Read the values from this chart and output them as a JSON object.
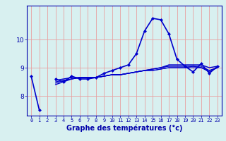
{
  "xlabel": "Graphe des températures (°c)",
  "x": [
    0,
    1,
    2,
    3,
    4,
    5,
    6,
    7,
    8,
    9,
    10,
    11,
    12,
    13,
    14,
    15,
    16,
    17,
    18,
    19,
    20,
    21,
    22,
    23
  ],
  "lines": [
    {
      "y": [
        8.7,
        7.5,
        null,
        8.6,
        8.5,
        8.7,
        8.6,
        8.6,
        8.65,
        8.8,
        8.9,
        9.0,
        9.1,
        9.5,
        10.3,
        10.75,
        10.7,
        10.2,
        9.3,
        9.05,
        8.85,
        9.15,
        8.8,
        9.05
      ],
      "color": "#0000cc",
      "lw": 1.2,
      "marker": "D",
      "markersize": 2.0
    },
    {
      "y": [
        8.7,
        null,
        null,
        8.55,
        8.6,
        8.65,
        8.65,
        8.65,
        8.65,
        8.7,
        8.75,
        8.75,
        8.8,
        8.85,
        8.9,
        8.95,
        9.0,
        9.1,
        9.1,
        9.1,
        9.1,
        9.1,
        9.0,
        9.05
      ],
      "color": "#0000cc",
      "lw": 1.0,
      "marker": null,
      "markersize": 0
    },
    {
      "y": [
        8.7,
        null,
        null,
        8.4,
        8.5,
        8.6,
        8.65,
        8.65,
        8.65,
        8.7,
        8.75,
        8.75,
        8.8,
        8.85,
        8.9,
        8.95,
        9.0,
        9.05,
        9.05,
        9.05,
        9.05,
        9.0,
        8.9,
        9.0
      ],
      "color": "#0000cc",
      "lw": 1.0,
      "marker": null,
      "markersize": 0
    },
    {
      "y": [
        8.7,
        null,
        null,
        8.45,
        8.55,
        8.6,
        8.65,
        8.65,
        8.65,
        8.7,
        8.75,
        8.75,
        8.8,
        8.85,
        8.9,
        8.9,
        8.95,
        9.0,
        9.0,
        9.0,
        9.0,
        9.0,
        8.85,
        9.0
      ],
      "color": "#0000cc",
      "lw": 0.8,
      "marker": null,
      "markersize": 0
    },
    {
      "y": [
        8.7,
        null,
        null,
        8.5,
        8.55,
        8.6,
        8.65,
        8.65,
        8.65,
        8.7,
        8.75,
        8.75,
        8.8,
        8.85,
        8.9,
        8.9,
        8.95,
        9.0,
        9.0,
        9.0,
        9.05,
        9.05,
        8.9,
        9.0
      ],
      "color": "#0000cc",
      "lw": 0.8,
      "marker": null,
      "markersize": 0
    }
  ],
  "bg_color": "#d8f0f0",
  "grid_color": "#e8a0a0",
  "axis_color": "#0000aa",
  "tick_color": "#0000aa",
  "label_color": "#0000aa",
  "yticks": [
    8,
    9,
    10
  ],
  "ylim": [
    7.3,
    11.2
  ],
  "xlim": [
    -0.5,
    23.5
  ],
  "tick_fontsize": 5.0,
  "xlabel_fontsize": 7.0
}
